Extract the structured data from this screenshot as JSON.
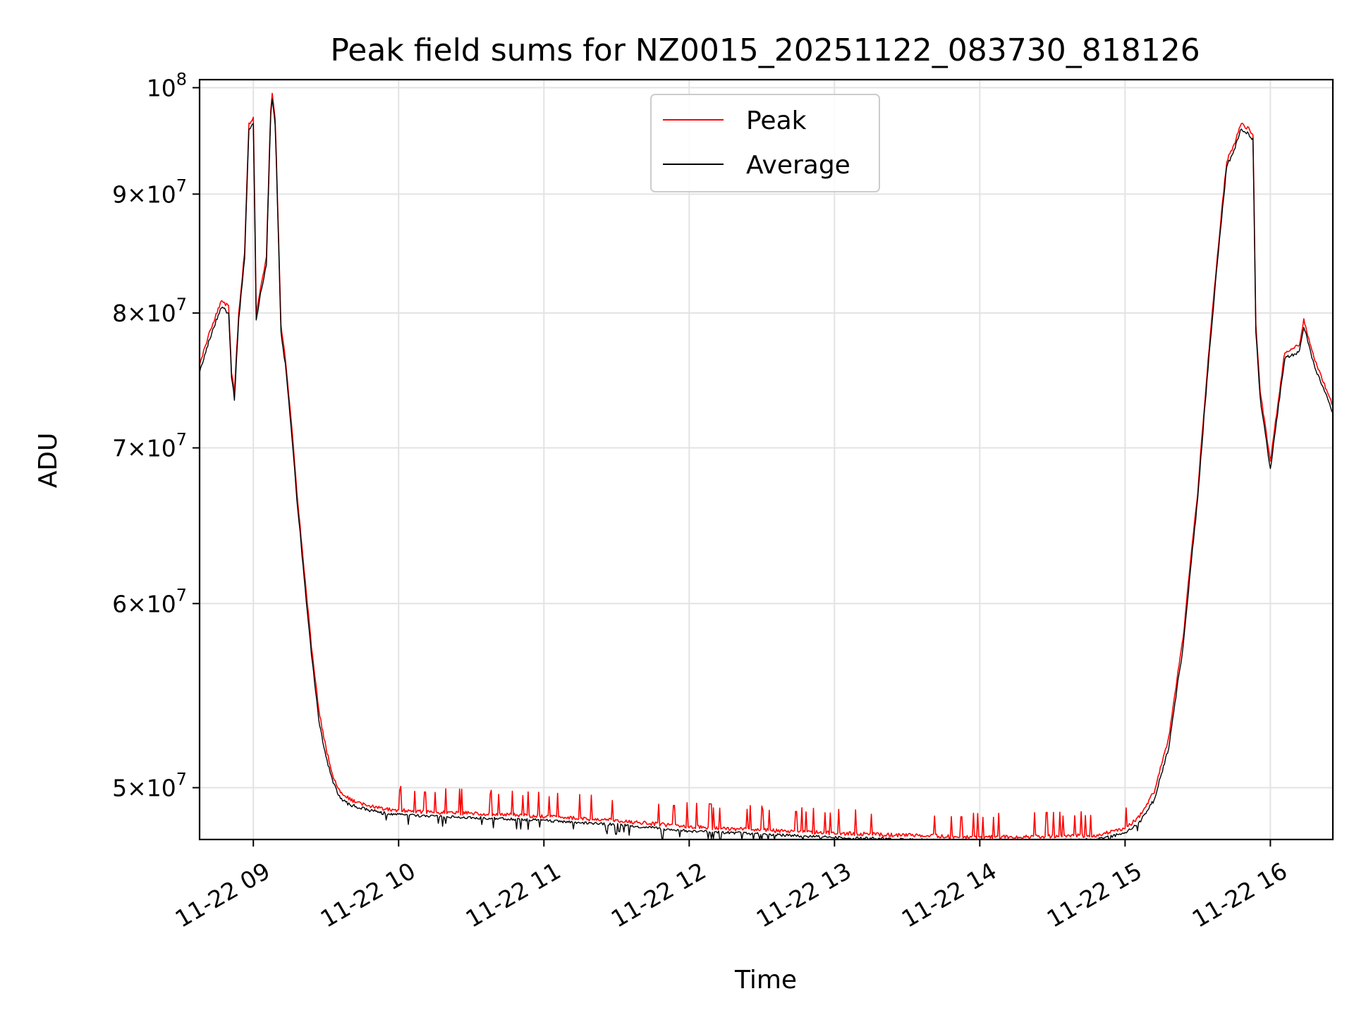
{
  "chart_data": {
    "type": "line",
    "title": "Peak field sums for NZ0015_20251122_083730_818126",
    "xlabel": "Time",
    "ylabel": "ADU",
    "yscale": "log",
    "grid": true,
    "legend_position": "top-center",
    "x_ticks": [
      {
        "hour": 9,
        "label": "11-22 09"
      },
      {
        "hour": 10,
        "label": "11-22 10"
      },
      {
        "hour": 11,
        "label": "11-22 11"
      },
      {
        "hour": 12,
        "label": "11-22 12"
      },
      {
        "hour": 13,
        "label": "11-22 13"
      },
      {
        "hour": 14,
        "label": "11-22 14"
      },
      {
        "hour": 15,
        "label": "11-22 15"
      },
      {
        "hour": 16,
        "label": "11-22 16"
      }
    ],
    "y_ticks": [
      {
        "value": 50000000,
        "mantissa": "5",
        "exp": "7"
      },
      {
        "value": 60000000,
        "mantissa": "6",
        "exp": "7"
      },
      {
        "value": 70000000,
        "mantissa": "7",
        "exp": "7"
      },
      {
        "value": 80000000,
        "mantissa": "8",
        "exp": "7"
      },
      {
        "value": 90000000,
        "mantissa": "9",
        "exp": "7"
      },
      {
        "value": 100000000,
        "mantissa": "",
        "exp": "8"
      }
    ],
    "xlim": [
      8.63,
      16.43
    ],
    "ylim": [
      47500000,
      100800000
    ],
    "series": [
      {
        "name": "Peak",
        "color": "#ff0000",
        "x": [
          8.63,
          8.7,
          8.78,
          8.83,
          8.85,
          8.87,
          8.9,
          8.94,
          8.97,
          9.0,
          9.02,
          9.05,
          9.09,
          9.12,
          9.13,
          9.15,
          9.19,
          9.22,
          9.26,
          9.3,
          9.35,
          9.4,
          9.45,
          9.5,
          9.55,
          9.6,
          9.65,
          9.7,
          9.8,
          9.9,
          10.0,
          10.2,
          10.5,
          11.0,
          11.5,
          12.0,
          12.5,
          13.0,
          13.5,
          14.0,
          14.5,
          14.8,
          15.0,
          15.1,
          15.2,
          15.3,
          15.4,
          15.5,
          15.6,
          15.7,
          15.75,
          15.8,
          15.85,
          15.88,
          15.9,
          15.93,
          16.0,
          16.1,
          16.2,
          16.23,
          16.3,
          16.43
        ],
        "y": [
          76000000,
          78500000,
          81000000,
          80500000,
          75500000,
          74000000,
          80000000,
          85000000,
          96500000,
          97000000,
          80000000,
          82000000,
          84500000,
          98000000,
          99500000,
          97000000,
          79000000,
          76500000,
          72000000,
          67000000,
          62000000,
          57500000,
          54000000,
          52000000,
          50500000,
          49800000,
          49500000,
          49300000,
          49100000,
          48950000,
          48900000,
          48800000,
          48750000,
          48600000,
          48400000,
          48100000,
          47950000,
          47800000,
          47700000,
          47600000,
          47650000,
          47700000,
          48000000,
          48600000,
          49800000,
          52500000,
          58000000,
          67000000,
          80000000,
          93000000,
          94500000,
          96500000,
          96000000,
          95500000,
          79000000,
          74000000,
          69000000,
          77000000,
          77500000,
          79500000,
          76500000,
          73000000
        ]
      },
      {
        "name": "Average",
        "color": "#000000",
        "x": [
          8.63,
          8.7,
          8.78,
          8.83,
          8.85,
          8.87,
          8.9,
          8.94,
          8.97,
          9.0,
          9.02,
          9.05,
          9.09,
          9.12,
          9.13,
          9.15,
          9.19,
          9.22,
          9.26,
          9.3,
          9.35,
          9.4,
          9.45,
          9.5,
          9.55,
          9.6,
          9.65,
          9.7,
          9.8,
          9.9,
          10.0,
          10.2,
          10.5,
          11.0,
          11.5,
          12.0,
          12.5,
          13.0,
          13.5,
          14.0,
          14.5,
          14.8,
          15.0,
          15.1,
          15.2,
          15.3,
          15.4,
          15.5,
          15.6,
          15.7,
          15.75,
          15.8,
          15.85,
          15.88,
          15.9,
          15.93,
          16.0,
          16.1,
          16.2,
          16.23,
          16.3,
          16.43
        ],
        "y": [
          75500000,
          78000000,
          80500000,
          80000000,
          75000000,
          73500000,
          79500000,
          84500000,
          96000000,
          96500000,
          79500000,
          81500000,
          84000000,
          97500000,
          99000000,
          96500000,
          78500000,
          76000000,
          71500000,
          66500000,
          61500000,
          57000000,
          53500000,
          51500000,
          50200000,
          49500000,
          49200000,
          49100000,
          48900000,
          48750000,
          48700000,
          48600000,
          48550000,
          48400000,
          48200000,
          47900000,
          47750000,
          47600000,
          47500000,
          47400000,
          47450000,
          47500000,
          47800000,
          48300000,
          49400000,
          52000000,
          57500000,
          66500000,
          79500000,
          92500000,
          94000000,
          96000000,
          95500000,
          95000000,
          78500000,
          73500000,
          68500000,
          76500000,
          77000000,
          79000000,
          76000000,
          72500000
        ]
      }
    ]
  }
}
